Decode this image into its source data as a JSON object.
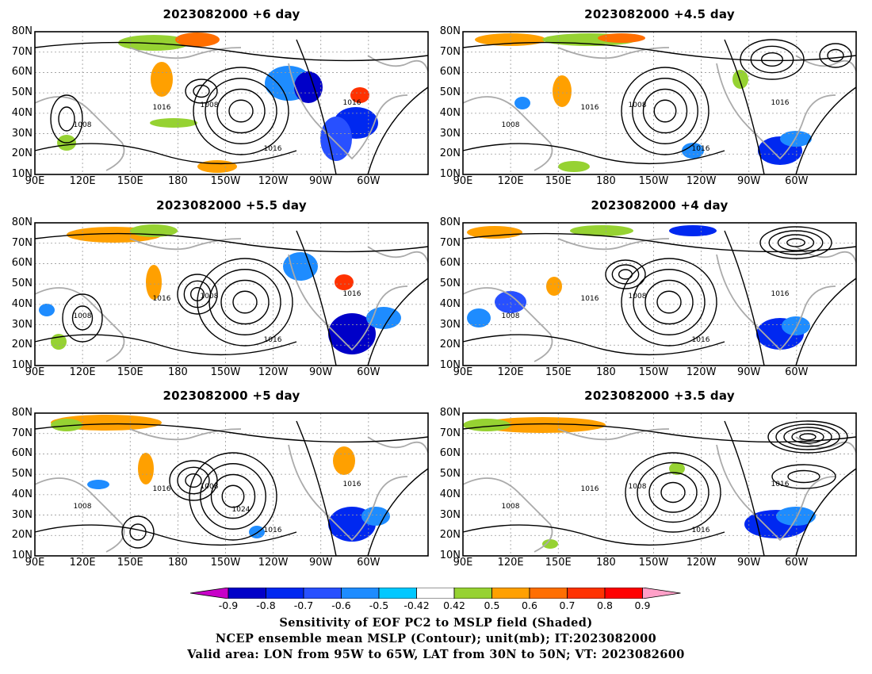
{
  "panels": [
    {
      "title": "2023082000 +6 day"
    },
    {
      "title": "2023082000 +4.5 day"
    },
    {
      "title": "2023082000 +5.5 day"
    },
    {
      "title": "2023082000 +4 day"
    },
    {
      "title": "2023082000 +5 day"
    },
    {
      "title": "2023082000 +3.5 day"
    }
  ],
  "lat_ticks": [
    "80N",
    "70N",
    "60N",
    "50N",
    "40N",
    "30N",
    "20N",
    "10N"
  ],
  "lon_ticks": [
    "90E",
    "120E",
    "150E",
    "180",
    "150W",
    "120W",
    "90W",
    "60W"
  ],
  "contour_label": "1016",
  "contour_label_low": "1008",
  "contour_label_high": "1024",
  "colorbar": {
    "ticks": [
      "-0.9",
      "-0.8",
      "-0.7",
      "-0.6",
      "-0.5",
      "-0.42",
      "0.42",
      "0.5",
      "0.6",
      "0.7",
      "0.8",
      "0.9"
    ],
    "colors": [
      "#c800c8",
      "#0000c8",
      "#0028f0",
      "#2850ff",
      "#1e8cff",
      "#00c8ff",
      "#ffffff",
      "#96d232",
      "#ffa000",
      "#ff6e00",
      "#ff3200",
      "#ff0000",
      "#ffa0c8"
    ]
  },
  "captions": [
    "Sensitivity of EOF PC2 to MSLP field (Shaded)",
    "NCEP ensemble mean MSLP (Contour); unit(mb); IT:2023082000",
    "Valid area: LON from 95W to 65W, LAT from 30N to 50N; VT: 2023082600"
  ]
}
